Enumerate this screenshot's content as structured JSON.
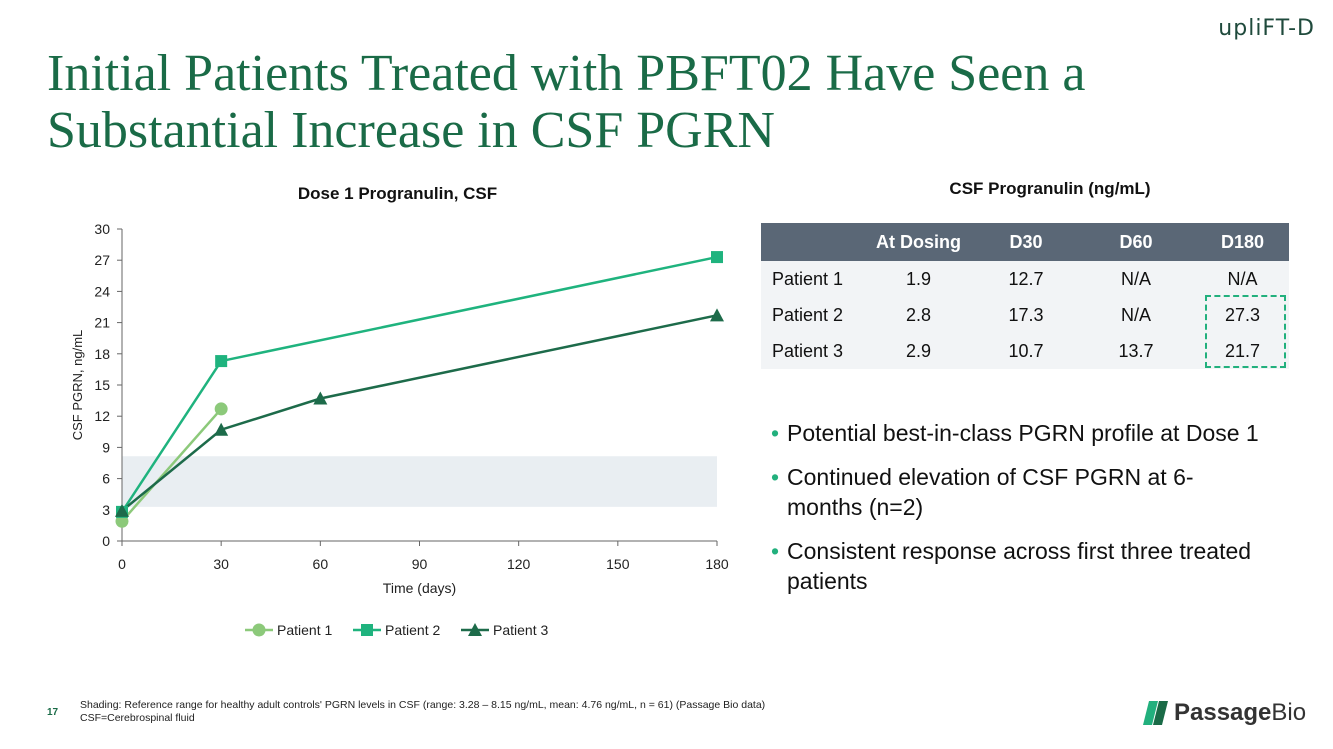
{
  "brand": "upliFT-D",
  "title": "Initial Patients Treated with PBFT02 Have Seen a Substantial Increase in CSF PGRN",
  "table": {
    "title": "CSF Progranulin (ng/mL)",
    "headers": [
      "",
      "At Dosing",
      "D30",
      "D60",
      "D180"
    ],
    "rows": [
      [
        "Patient 1",
        "1.9",
        "12.7",
        "N/A",
        "N/A"
      ],
      [
        "Patient 2",
        "2.8",
        "17.3",
        "N/A",
        "27.3"
      ],
      [
        "Patient 3",
        "2.9",
        "10.7",
        "13.7",
        "21.7"
      ]
    ]
  },
  "bullets": [
    "Potential best-in-class PGRN profile at Dose 1",
    "Continued elevation of CSF PGRN at 6-months (n=2)",
    "Consistent response across first three treated patients"
  ],
  "footer": {
    "page_number": "17",
    "note1": "Shading: Reference range for healthy adult controls' PGRN levels in CSF (range: 3.28 – 8.15 ng/mL, mean: 4.76 ng/mL, n = 61) (Passage Bio data)",
    "note2": "CSF=Cerebrospinal fluid",
    "logo_part1": "Passage",
    "logo_part2": "Bio"
  },
  "chart_data": {
    "type": "line",
    "title": "Dose 1 Progranulin, CSF",
    "xlabel": "Time (days)",
    "ylabel": "CSF PGRN, ng/mL",
    "xlim": [
      0,
      180
    ],
    "ylim": [
      0,
      30
    ],
    "xticks": [
      0,
      30,
      60,
      90,
      120,
      150,
      180
    ],
    "yticks": [
      0,
      3,
      6,
      9,
      12,
      15,
      18,
      21,
      24,
      27,
      30
    ],
    "shaded_band": [
      3.28,
      8.15
    ],
    "legend": "bottom",
    "series": [
      {
        "name": "Patient 1",
        "x": [
          0,
          30
        ],
        "y": [
          1.9,
          12.7
        ],
        "marker": "circle",
        "color": "#8cc97a"
      },
      {
        "name": "Patient 2",
        "x": [
          0,
          30,
          180
        ],
        "y": [
          2.8,
          17.3,
          27.3
        ],
        "marker": "square",
        "color": "#1fb37e"
      },
      {
        "name": "Patient 3",
        "x": [
          0,
          30,
          60,
          180
        ],
        "y": [
          2.9,
          10.7,
          13.7,
          21.7
        ],
        "marker": "triangle",
        "color": "#1d6b4a"
      }
    ]
  }
}
